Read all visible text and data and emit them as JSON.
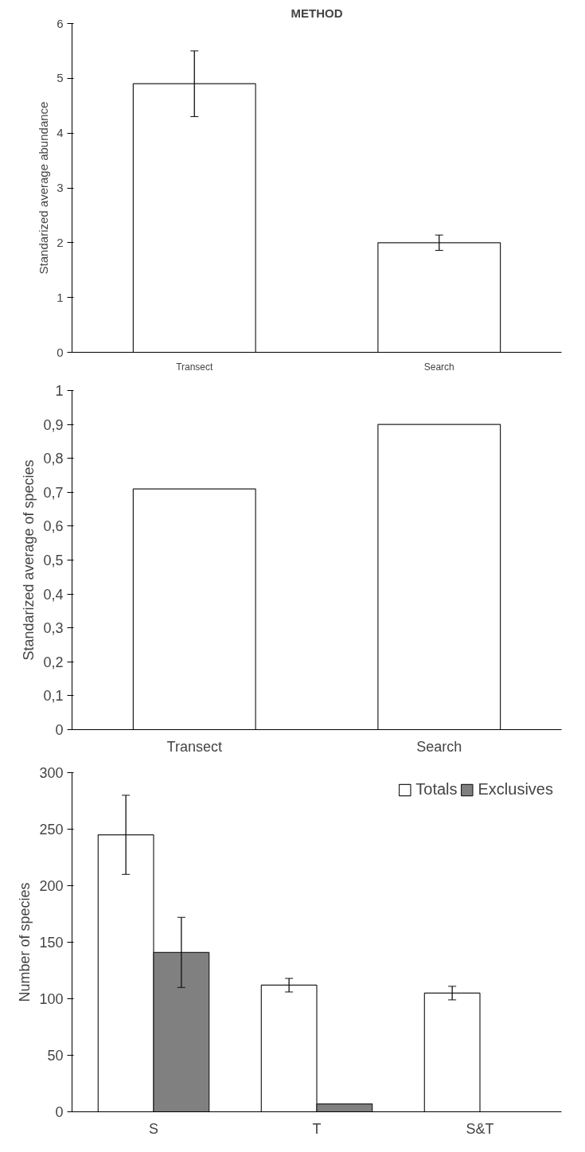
{
  "chart_data": [
    {
      "type": "bar",
      "title": "METHOD",
      "categories": [
        "Transect",
        "Search"
      ],
      "ylabel": "Standarized average abundance",
      "ylim": [
        0,
        6
      ],
      "yticks": [
        0,
        1,
        2,
        3,
        4,
        5,
        6
      ],
      "series": [
        {
          "color": "#ffffff",
          "values": [
            4.9,
            2.0
          ],
          "errors": [
            0.6,
            0.14
          ]
        }
      ]
    },
    {
      "type": "bar",
      "categories": [
        "Transect",
        "Search"
      ],
      "ylabel": "Standarized average of species",
      "ylim": [
        0,
        1
      ],
      "yticks": [
        0,
        {
          "value": 0.1,
          "label": "0,1"
        },
        {
          "value": 0.2,
          "label": "0,2"
        },
        {
          "value": 0.3,
          "label": "0,3"
        },
        {
          "value": 0.4,
          "label": "0,4"
        },
        {
          "value": 0.5,
          "label": "0,5"
        },
        {
          "value": 0.6,
          "label": "0,6"
        },
        {
          "value": 0.7,
          "label": "0,7"
        },
        {
          "value": 0.8,
          "label": "0,8"
        },
        {
          "value": 0.9,
          "label": "0,9"
        },
        1
      ],
      "series": [
        {
          "color": "#ffffff",
          "values": [
            0.71,
            0.9
          ]
        }
      ]
    },
    {
      "type": "bar",
      "categories": [
        "S",
        "T",
        "S&T"
      ],
      "ylabel": "Number of species",
      "ylim": [
        0,
        300
      ],
      "yticks": [
        0,
        50,
        100,
        150,
        200,
        250,
        300
      ],
      "legend": "top right",
      "series": [
        {
          "name": "Totals",
          "color": "#ffffff",
          "values": [
            245,
            112,
            105
          ],
          "errors": [
            35,
            6,
            6
          ]
        },
        {
          "name": "Exclusives",
          "color": "#808080",
          "values": [
            141,
            7,
            null
          ],
          "errors": [
            31,
            null,
            null
          ]
        }
      ]
    }
  ]
}
